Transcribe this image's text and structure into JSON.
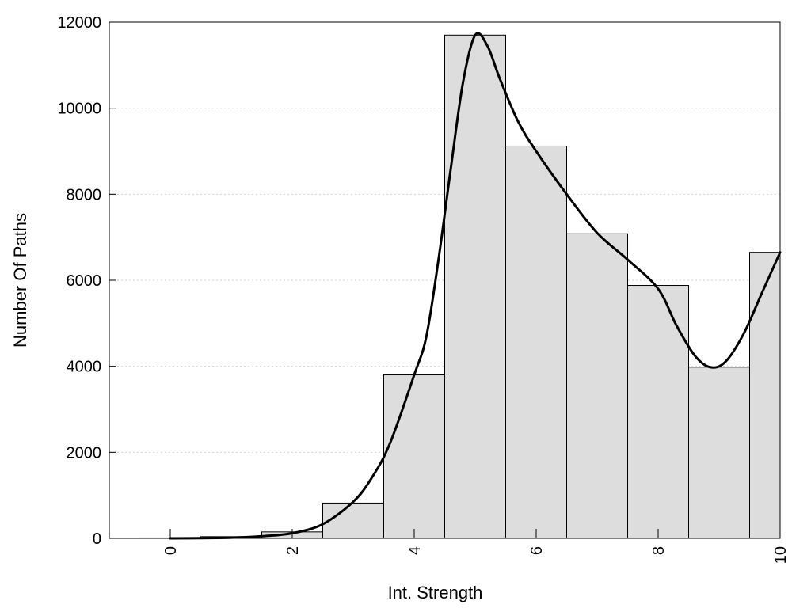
{
  "chart_data": {
    "type": "bar",
    "xlabel": "Int. Strength",
    "ylabel": "Number Of Paths",
    "xlim": [
      -1,
      10
    ],
    "ylim": [
      0,
      12000
    ],
    "x_ticks": [
      0,
      2,
      4,
      6,
      8,
      10
    ],
    "y_ticks": [
      0,
      2000,
      4000,
      6000,
      8000,
      10000,
      12000
    ],
    "grid": "horizontal-dotted",
    "bin_width": 1,
    "bars": [
      {
        "x": 0,
        "value": 10
      },
      {
        "x": 1,
        "value": 40
      },
      {
        "x": 2,
        "value": 150
      },
      {
        "x": 3,
        "value": 820
      },
      {
        "x": 4,
        "value": 3800
      },
      {
        "x": 5,
        "value": 11700
      },
      {
        "x": 6,
        "value": 9120
      },
      {
        "x": 7,
        "value": 7080
      },
      {
        "x": 8,
        "value": 5880
      },
      {
        "x": 9,
        "value": 3980
      },
      {
        "x": 10,
        "value": 6650
      }
    ],
    "curve": [
      [
        0,
        0
      ],
      [
        0.5,
        5
      ],
      [
        1,
        15
      ],
      [
        1.5,
        50
      ],
      [
        2,
        120
      ],
      [
        2.5,
        330
      ],
      [
        3,
        850
      ],
      [
        3.3,
        1400
      ],
      [
        3.6,
        2200
      ],
      [
        4,
        3800
      ],
      [
        4.2,
        4700
      ],
      [
        4.4,
        6500
      ],
      [
        4.6,
        8600
      ],
      [
        4.8,
        10600
      ],
      [
        5,
        11700
      ],
      [
        5.2,
        11450
      ],
      [
        5.4,
        10700
      ],
      [
        5.7,
        9700
      ],
      [
        6,
        9000
      ],
      [
        6.5,
        8000
      ],
      [
        7,
        7100
      ],
      [
        7.5,
        6480
      ],
      [
        8,
        5800
      ],
      [
        8.3,
        4950
      ],
      [
        8.6,
        4250
      ],
      [
        8.85,
        3980
      ],
      [
        9.1,
        4100
      ],
      [
        9.4,
        4750
      ],
      [
        9.7,
        5700
      ],
      [
        10,
        6650
      ]
    ],
    "colors": {
      "bar_fill": "#dddddd",
      "bar_stroke": "#000000",
      "curve": "#000000",
      "grid": "#d3d3d3"
    }
  }
}
